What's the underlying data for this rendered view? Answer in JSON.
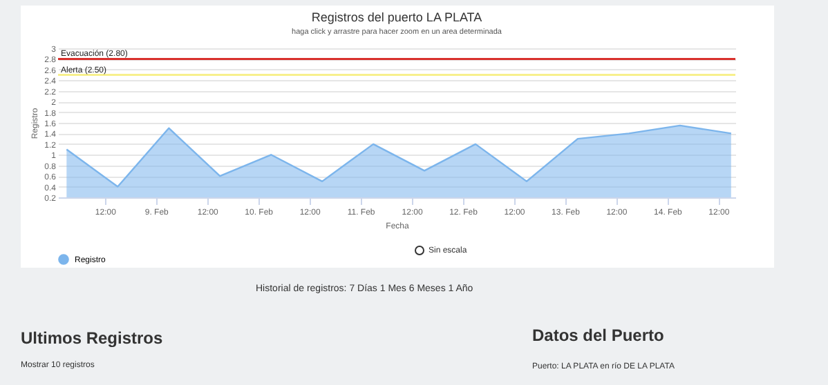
{
  "chart_data": {
    "type": "area",
    "title": "Registros del puerto LA PLATA",
    "subtitle": "haga click y arrastre para hacer zoom en un area determinada",
    "xlabel": "Fecha",
    "ylabel": "Registro",
    "x": [
      "--02-08T03:00",
      "--02-08T15:00",
      "--02-09T03:00",
      "--02-09T15:00",
      "--02-10T03:00",
      "--02-10T15:00",
      "--02-11T03:00",
      "--02-11T15:00",
      "--02-12T03:00",
      "--02-12T15:00",
      "--02-13T03:00",
      "--02-13T15:00",
      "--02-14T03:00",
      "--02-14T15:00"
    ],
    "series": [
      {
        "name": "Registro",
        "color": "#7cb5ec",
        "values": [
          1.1,
          0.4,
          1.5,
          0.6,
          1.0,
          0.5,
          1.2,
          0.7,
          1.2,
          0.5,
          1.3,
          1.4,
          1.55,
          1.4
        ]
      }
    ],
    "xlim": [
      "--02-08T01:00",
      "--02-14T16:00"
    ],
    "xticks": [
      {
        "value": "--02-08T12:00",
        "label": "12:00"
      },
      {
        "value": "--02-09T00:00",
        "label": "9. Feb"
      },
      {
        "value": "--02-09T12:00",
        "label": "12:00"
      },
      {
        "value": "--02-10T00:00",
        "label": "10. Feb"
      },
      {
        "value": "--02-10T12:00",
        "label": "12:00"
      },
      {
        "value": "--02-11T00:00",
        "label": "11. Feb"
      },
      {
        "value": "--02-11T12:00",
        "label": "12:00"
      },
      {
        "value": "--02-12T00:00",
        "label": "12. Feb"
      },
      {
        "value": "--02-12T12:00",
        "label": "12:00"
      },
      {
        "value": "--02-13T00:00",
        "label": "13. Feb"
      },
      {
        "value": "--02-13T12:00",
        "label": "12:00"
      },
      {
        "value": "--02-14T00:00",
        "label": "14. Feb"
      },
      {
        "value": "--02-14T12:00",
        "label": "12:00"
      }
    ],
    "ylim": [
      0.2,
      3
    ],
    "yticks": [
      0.2,
      0.4,
      0.6,
      0.8,
      1,
      1.2,
      1.4,
      1.6,
      1.8,
      2,
      2.2,
      2.4,
      2.6,
      2.8,
      3
    ],
    "ref_lines": [
      {
        "axis": "y",
        "value": 2.8,
        "label": "Evacuación (2.80)",
        "color": "#d9302c"
      },
      {
        "axis": "y",
        "value": 2.5,
        "label": "Alerta (2.50)",
        "color": "#f7f08c"
      }
    ],
    "grid": "y",
    "legend": "bottom",
    "annotations": [
      "Sin escala",
      "Historial de registros: 7 Días 1 Mes 6 Meses 1 Año",
      "Ultimos Registros",
      "Mostrar 10 registros",
      "Datos del Puerto",
      "Puerto: LA PLATA en río DE LA PLATA"
    ]
  }
}
